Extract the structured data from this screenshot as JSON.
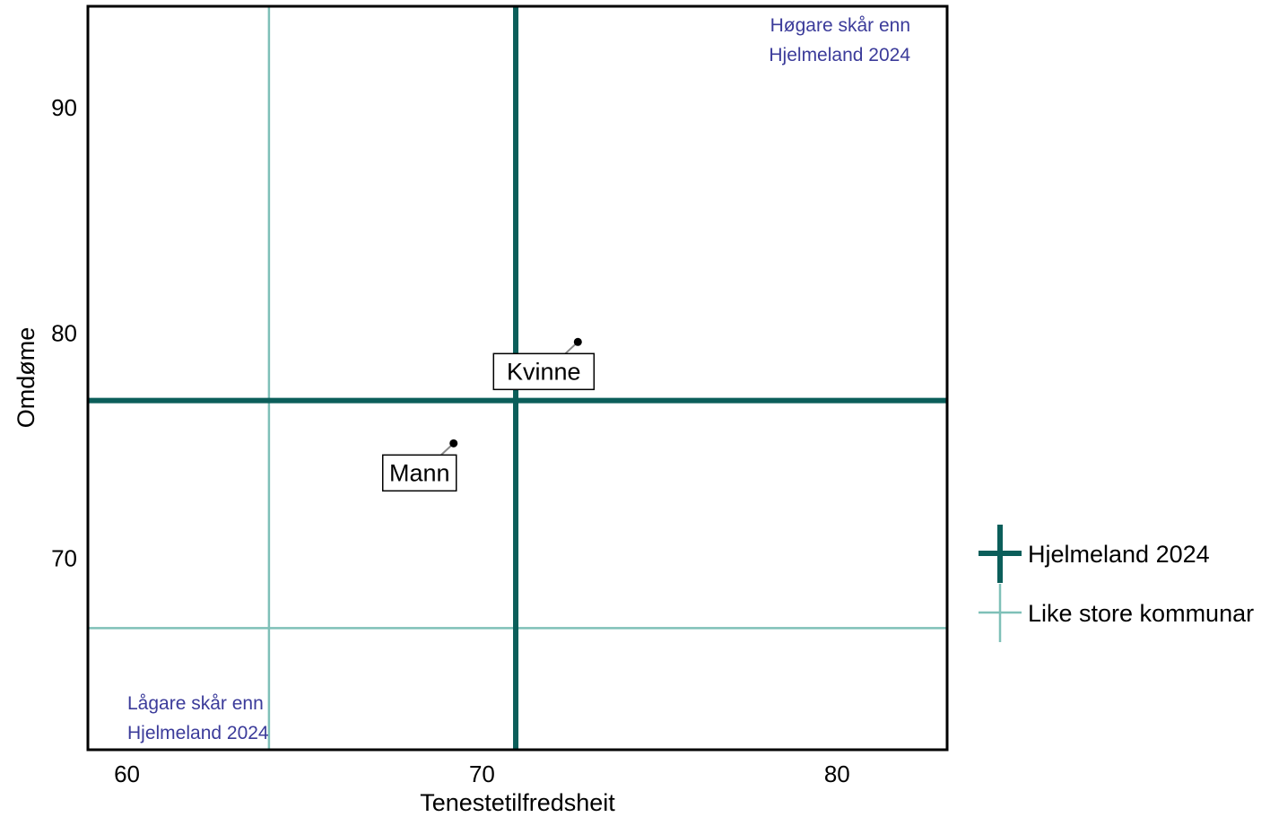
{
  "chart_data": {
    "type": "scatter",
    "xlabel": "Tenestetilfredsheit",
    "ylabel": "Omdøme",
    "xlim": [
      58.9,
      83.1
    ],
    "ylim": [
      61.5,
      94.5
    ],
    "x_ticks": [
      "60",
      "70",
      "80"
    ],
    "y_ticks": [
      "70",
      "80",
      "90"
    ],
    "grid": false,
    "points": [
      {
        "label": "Kvinne",
        "x": 72.7,
        "y": 79.6
      },
      {
        "label": "Mann",
        "x": 69.2,
        "y": 75.1
      }
    ],
    "reference_lines": [
      {
        "name": "Hjelmeland 2024",
        "x": 70.95,
        "y": 77.0,
        "color": "#0b5e5a"
      },
      {
        "name": "Like store kommunar",
        "x": 64.0,
        "y": 66.9,
        "color": "#7fc0b8"
      }
    ],
    "annotations": {
      "top_right": [
        "Høgare skår enn",
        "Hjelmeland 2024"
      ],
      "bottom_left": [
        "Lågare skår enn",
        "Hjelmeland 2024"
      ]
    },
    "annotation_color": "#3b3b9a",
    "legend": {
      "placement": "right",
      "entries": [
        "Hjelmeland 2024",
        "Like store kommunar"
      ]
    }
  }
}
